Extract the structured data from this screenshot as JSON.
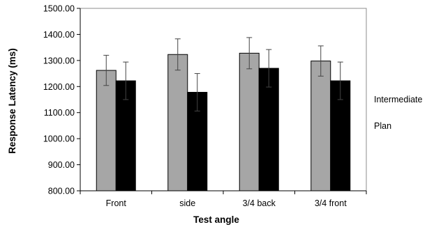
{
  "chart_data": {
    "type": "bar",
    "title": "",
    "xlabel": "Test angle",
    "ylabel": "Response Latency (ms)",
    "ylim": [
      800,
      1500
    ],
    "ytick_step": 100,
    "ytick_labels": [
      "800.00",
      "900.00",
      "1000.00",
      "1100.00",
      "1200.00",
      "1300.00",
      "1400.00",
      "1500.00"
    ],
    "grid": false,
    "legend_position": "right",
    "categories": [
      "Front",
      "side",
      "3/4 back",
      "3/4 front"
    ],
    "series": [
      {
        "name": "Intermediate",
        "color": "#a6a6a6",
        "values": [
          1262,
          1323,
          1328,
          1298
        ],
        "errors": [
          58,
          60,
          60,
          58
        ]
      },
      {
        "name": "Plan",
        "color": "#000000",
        "values": [
          1222,
          1178,
          1270,
          1222
        ],
        "errors": [
          72,
          72,
          72,
          72
        ]
      }
    ]
  }
}
